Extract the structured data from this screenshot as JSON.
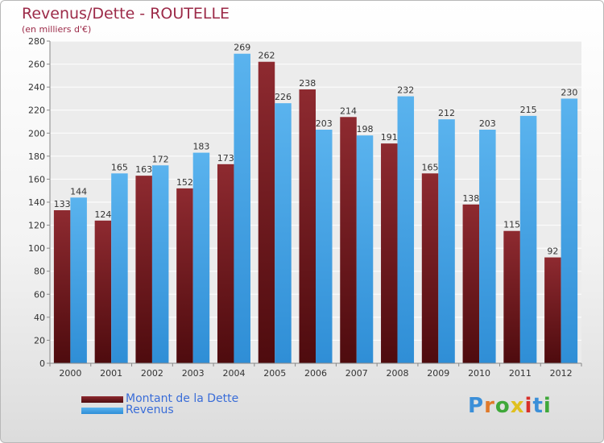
{
  "title": "Revenus/Dette - ROUTELLE",
  "subtitle": "(en milliers d'€)",
  "legend": [
    {
      "label": "Montant de la Dette",
      "key": "debt"
    },
    {
      "label": "Revenus",
      "key": "rev"
    }
  ],
  "logo": "Proxiti",
  "colors": {
    "debt_top": "#8e2a30",
    "debt_bottom": "#4e0b0e",
    "rev_top": "#5ab3ee",
    "rev_bottom": "#2f8ed6",
    "title": "#9c2a48",
    "legend_text": "#3a6dd8"
  },
  "chart_data": {
    "type": "bar",
    "title": "Revenus/Dette - ROUTELLE",
    "ylabel": "(en milliers d'€)",
    "categories": [
      "2000",
      "2001",
      "2002",
      "2003",
      "2004",
      "2005",
      "2006",
      "2007",
      "2008",
      "2009",
      "2010",
      "2011",
      "2012"
    ],
    "series": [
      {
        "name": "Montant de la Dette",
        "values": [
          133,
          124,
          163,
          152,
          173,
          262,
          238,
          214,
          191,
          165,
          138,
          115,
          92
        ]
      },
      {
        "name": "Revenus",
        "values": [
          144,
          165,
          172,
          183,
          269,
          226,
          203,
          198,
          232,
          212,
          203,
          215,
          230
        ]
      }
    ],
    "ylim": [
      0,
      280
    ],
    "yticks": [
      0,
      20,
      40,
      60,
      80,
      100,
      120,
      140,
      160,
      180,
      200,
      220,
      240,
      260,
      280
    ],
    "grid": true
  }
}
